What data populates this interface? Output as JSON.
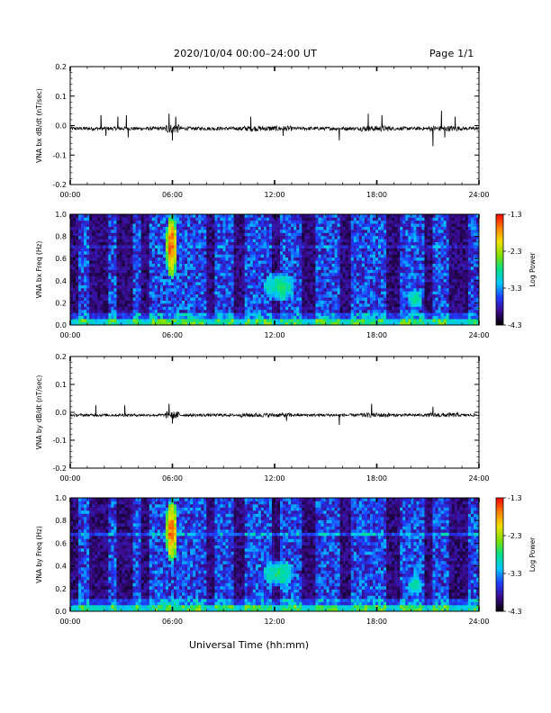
{
  "header": {
    "title": "2020/10/04  00:00–24:00 UT",
    "page": "Page 1/1"
  },
  "x_axis_title": "Universal Time (hh:mm)",
  "colors": {
    "trace": "#000000",
    "spectrogram_background": "#2a0a4e",
    "colorbar": [
      "#000000",
      "#3b0a8c",
      "#1f3cff",
      "#00c8ff",
      "#00e08a",
      "#7fe000",
      "#f0e000",
      "#ff8000",
      "#ff0000"
    ]
  },
  "chart_data": [
    {
      "type": "line",
      "id": "bx-dbdt",
      "ylabel": "VNA bx dB/dt (nT/sec)",
      "xlim": [
        0,
        24
      ],
      "ylim": [
        -0.2,
        0.2
      ],
      "x_tick_labels": [
        "00:00",
        "06:00",
        "12:00",
        "18:00",
        "24:00"
      ],
      "y_tick_labels": [
        "0.2",
        "0.1",
        "0.0",
        "-0.1",
        "-0.2"
      ],
      "y_tick_values": [
        0.2,
        0.1,
        0.0,
        -0.1,
        -0.2
      ],
      "grid": false,
      "baseline": -0.01,
      "noise_amplitude": 0.006,
      "spikes": [
        {
          "x": 1.8,
          "y": 0.035
        },
        {
          "x": 2.1,
          "y": -0.035
        },
        {
          "x": 2.8,
          "y": 0.03
        },
        {
          "x": 3.3,
          "y": 0.035
        },
        {
          "x": 3.4,
          "y": -0.04
        },
        {
          "x": 5.8,
          "y": 0.04
        },
        {
          "x": 6.0,
          "y": -0.05
        },
        {
          "x": 6.2,
          "y": 0.03
        },
        {
          "x": 10.6,
          "y": 0.03
        },
        {
          "x": 12.5,
          "y": -0.035
        },
        {
          "x": 15.8,
          "y": -0.05
        },
        {
          "x": 17.5,
          "y": 0.04
        },
        {
          "x": 18.3,
          "y": 0.035
        },
        {
          "x": 21.3,
          "y": -0.07
        },
        {
          "x": 21.8,
          "y": 0.05
        },
        {
          "x": 22.0,
          "y": -0.04
        },
        {
          "x": 22.6,
          "y": 0.03
        }
      ]
    },
    {
      "type": "heatmap",
      "id": "bx-freq",
      "ylabel": "VNA bx Freq (Hz)",
      "xlim": [
        0,
        24
      ],
      "ylim": [
        0.0,
        1.0
      ],
      "x_tick_labels": [
        "00:00",
        "06:00",
        "12:00",
        "18:00",
        "24:00"
      ],
      "y_tick_labels": [
        "1.0",
        "0.8",
        "0.6",
        "0.4",
        "0.2",
        "0.0"
      ],
      "y_tick_values": [
        1.0,
        0.8,
        0.6,
        0.4,
        0.2,
        0.0
      ],
      "colorbar_label": "Log Power",
      "colorbar_ticks": [
        "-1.3",
        "-2.3",
        "-3.3",
        "-4.3"
      ],
      "colorbar_tick_values": [
        -1.3,
        -2.3,
        -3.3,
        -4.3
      ],
      "power_range": [
        -4.3,
        -1.3
      ],
      "dark_bands": [
        [
          0.0,
          0.4
        ],
        [
          1.2,
          2.2
        ],
        [
          2.8,
          3.6
        ],
        [
          4.1,
          4.7
        ],
        [
          8.0,
          8.5
        ],
        [
          9.6,
          10.2
        ],
        [
          11.8,
          12.3
        ],
        [
          13.6,
          14.4
        ],
        [
          15.8,
          16.4
        ],
        [
          18.6,
          19.4
        ],
        [
          20.8,
          21.2
        ],
        [
          22.3,
          23.3
        ]
      ],
      "features": [
        {
          "x0": 5.6,
          "x1": 6.3,
          "y0": 0.42,
          "y1": 1.0,
          "peak": -1.3
        },
        {
          "x0": 11.3,
          "x1": 13.2,
          "y0": 0.22,
          "y1": 0.48,
          "peak": -2.6
        },
        {
          "x0": 19.8,
          "x1": 20.7,
          "y0": 0.15,
          "y1": 0.32,
          "peak": -2.7
        }
      ]
    },
    {
      "type": "line",
      "id": "by-dbdt",
      "ylabel": "VNA by dB/dt (nT/sec)",
      "xlim": [
        0,
        24
      ],
      "ylim": [
        -0.2,
        0.2
      ],
      "x_tick_labels": [
        "00:00",
        "06:00",
        "12:00",
        "18:00",
        "24:00"
      ],
      "y_tick_labels": [
        "0.2",
        "0.1",
        "0.0",
        "-0.1",
        "-0.2"
      ],
      "y_tick_values": [
        0.2,
        0.1,
        0.0,
        -0.1,
        -0.2
      ],
      "grid": false,
      "baseline": -0.01,
      "noise_amplitude": 0.005,
      "spikes": [
        {
          "x": 1.5,
          "y": 0.025
        },
        {
          "x": 3.2,
          "y": 0.025
        },
        {
          "x": 5.8,
          "y": 0.03
        },
        {
          "x": 6.0,
          "y": -0.04
        },
        {
          "x": 12.7,
          "y": -0.03
        },
        {
          "x": 15.8,
          "y": -0.045
        },
        {
          "x": 17.7,
          "y": 0.03
        },
        {
          "x": 21.3,
          "y": 0.02
        }
      ]
    },
    {
      "type": "heatmap",
      "id": "by-freq",
      "ylabel": "VNA by Freq (Hz)",
      "xlim": [
        0,
        24
      ],
      "ylim": [
        0.0,
        1.0
      ],
      "x_tick_labels": [
        "00:00",
        "06:00",
        "12:00",
        "18:00",
        "24:00"
      ],
      "y_tick_labels": [
        "1.0",
        "0.8",
        "0.6",
        "0.4",
        "0.2",
        "0.0"
      ],
      "y_tick_values": [
        1.0,
        0.8,
        0.6,
        0.4,
        0.2,
        0.0
      ],
      "colorbar_label": "Log Power",
      "colorbar_ticks": [
        "-1.3",
        "-2.3",
        "-3.3",
        "-4.3"
      ],
      "colorbar_tick_values": [
        -1.3,
        -2.3,
        -3.3,
        -4.3
      ],
      "power_range": [
        -4.3,
        -1.3
      ],
      "dark_bands": [
        [
          0.0,
          0.4
        ],
        [
          1.2,
          2.2
        ],
        [
          2.8,
          3.6
        ],
        [
          4.1,
          4.7
        ],
        [
          8.0,
          8.5
        ],
        [
          9.6,
          10.2
        ],
        [
          11.8,
          12.3
        ],
        [
          13.6,
          14.4
        ],
        [
          15.8,
          16.4
        ],
        [
          18.6,
          19.4
        ],
        [
          20.8,
          21.2
        ],
        [
          22.3,
          23.3
        ]
      ],
      "features": [
        {
          "x0": 5.6,
          "x1": 6.3,
          "y0": 0.42,
          "y1": 1.0,
          "peak": -1.3
        },
        {
          "x0": 11.3,
          "x1": 13.2,
          "y0": 0.22,
          "y1": 0.45,
          "peak": -2.6
        },
        {
          "x0": 19.8,
          "x1": 20.7,
          "y0": 0.15,
          "y1": 0.32,
          "peak": -2.7
        }
      ]
    }
  ]
}
